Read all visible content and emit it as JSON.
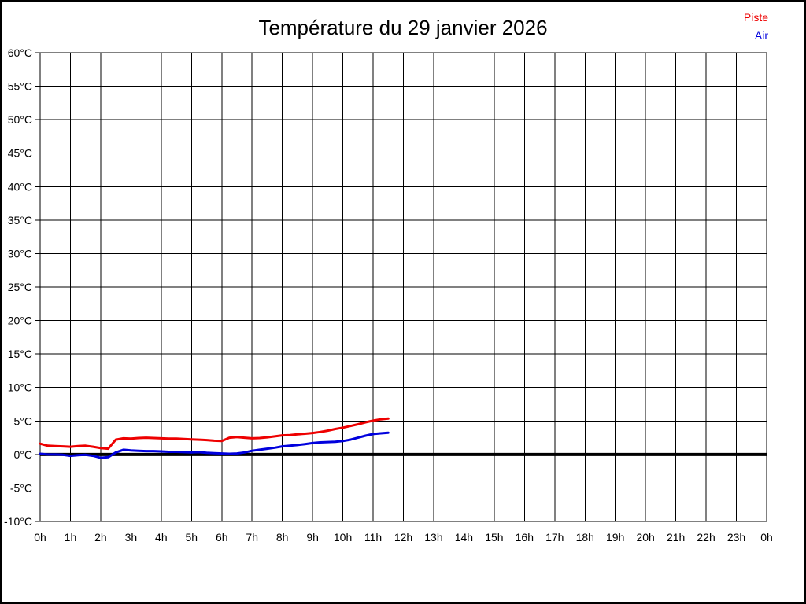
{
  "title": "Température du 29 janvier 2026",
  "chart_data": {
    "type": "line",
    "title": "Température du 29 janvier 2026",
    "xlabel": "",
    "ylabel": "",
    "xlim": [
      0,
      24
    ],
    "ylim": [
      -10,
      60
    ],
    "xstep": 1,
    "ystep": 5,
    "grid": true,
    "zero_line": true,
    "legend_position": "top-right",
    "x_tick_labels": [
      "0h",
      "1h",
      "2h",
      "3h",
      "4h",
      "5h",
      "6h",
      "7h",
      "8h",
      "9h",
      "10h",
      "11h",
      "12h",
      "13h",
      "14h",
      "15h",
      "16h",
      "17h",
      "18h",
      "19h",
      "20h",
      "21h",
      "22h",
      "23h",
      "0h"
    ],
    "y_tick_labels": [
      "60°C",
      "55°C",
      "50°C",
      "45°C",
      "40°C",
      "35°C",
      "30°C",
      "25°C",
      "20°C",
      "15°C",
      "10°C",
      "5°C",
      "0°C",
      "-5°C",
      "-10°C"
    ],
    "x": [
      0,
      0.25,
      0.5,
      0.75,
      1,
      1.25,
      1.5,
      1.75,
      2,
      2.25,
      2.5,
      2.75,
      3,
      3.25,
      3.5,
      3.75,
      4,
      4.25,
      4.5,
      4.75,
      5,
      5.25,
      5.5,
      5.75,
      6,
      6.25,
      6.5,
      6.75,
      7,
      7.25,
      7.5,
      7.75,
      8,
      8.25,
      8.5,
      8.75,
      9,
      9.25,
      9.5,
      9.75,
      10,
      10.25,
      10.5,
      10.75,
      11,
      11.25,
      11.5
    ],
    "series": [
      {
        "name": "Piste",
        "color": "#ee0000",
        "values": [
          1.6,
          1.3,
          1.25,
          1.2,
          1.15,
          1.25,
          1.3,
          1.15,
          0.95,
          0.85,
          2.2,
          2.4,
          2.35,
          2.45,
          2.5,
          2.45,
          2.4,
          2.35,
          2.35,
          2.3,
          2.25,
          2.2,
          2.15,
          2.05,
          2.0,
          2.5,
          2.6,
          2.5,
          2.4,
          2.45,
          2.55,
          2.7,
          2.85,
          2.9,
          3.0,
          3.1,
          3.2,
          3.35,
          3.55,
          3.8,
          4.0,
          4.25,
          4.5,
          4.8,
          5.05,
          5.25,
          5.35
        ]
      },
      {
        "name": "Air",
        "color": "#0000dd",
        "values": [
          0.1,
          0.0,
          0.0,
          -0.05,
          -0.2,
          -0.1,
          -0.05,
          -0.2,
          -0.5,
          -0.4,
          0.3,
          0.7,
          0.6,
          0.55,
          0.5,
          0.5,
          0.45,
          0.4,
          0.4,
          0.35,
          0.3,
          0.35,
          0.25,
          0.2,
          0.15,
          0.1,
          0.15,
          0.3,
          0.55,
          0.7,
          0.85,
          1.0,
          1.2,
          1.3,
          1.4,
          1.55,
          1.7,
          1.8,
          1.85,
          1.9,
          2.0,
          2.2,
          2.5,
          2.8,
          3.05,
          3.15,
          3.25
        ]
      }
    ]
  }
}
